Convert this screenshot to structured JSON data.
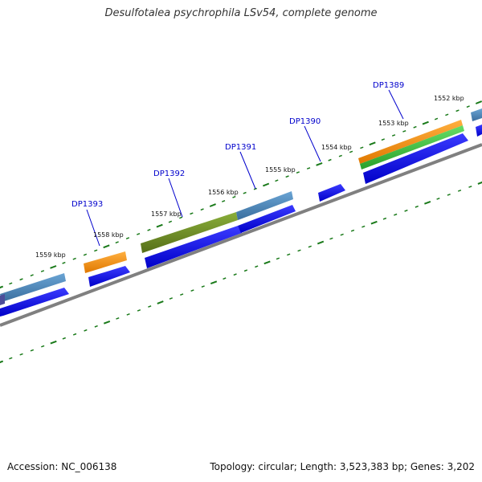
{
  "title": "Desulfotalea psychrophila LSv54, complete genome",
  "footer": {
    "accession": "Accession: NC_006138",
    "summary": "Topology: circular; Length: 3,523,383 bp; Genes: 3,202"
  },
  "colors": {
    "cds": "#0000ee",
    "tick": "#1a7a1a",
    "backbone": "#777777",
    "label": "#0000cc",
    "orange": "#ff8c00",
    "green": "#44cc44",
    "olive": "#6b8e23",
    "steel": "#4682b4"
  },
  "positions_kbp": [
    1552,
    1553,
    1554,
    1555,
    1556,
    1557,
    1558,
    1559
  ],
  "position_labels": [
    "1552 kbp",
    "1553 kbp",
    "1554 kbp",
    "1555 kbp",
    "1556 kbp",
    "1557 kbp",
    "1558 kbp",
    "1559 kbp"
  ],
  "gene_labels": [
    "DP1389",
    "DP1390",
    "DP1391",
    "DP1392",
    "DP1393"
  ]
}
